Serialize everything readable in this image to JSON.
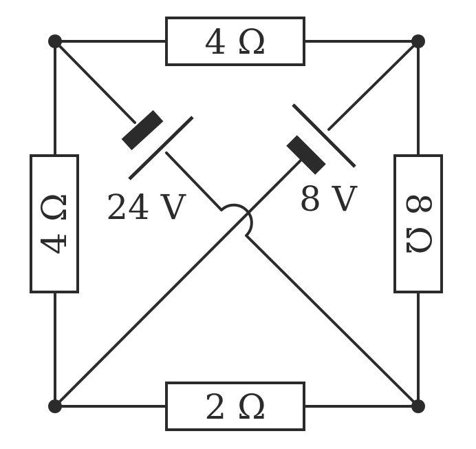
{
  "colors": {
    "wire": "#2b2b2b",
    "background": "#ffffff"
  },
  "resistors": {
    "top": "4 Ω",
    "left": "4 Ω",
    "right": "8 Ω",
    "bottom": "2 Ω"
  },
  "batteries": {
    "left": "24 V",
    "right": "8 V"
  }
}
